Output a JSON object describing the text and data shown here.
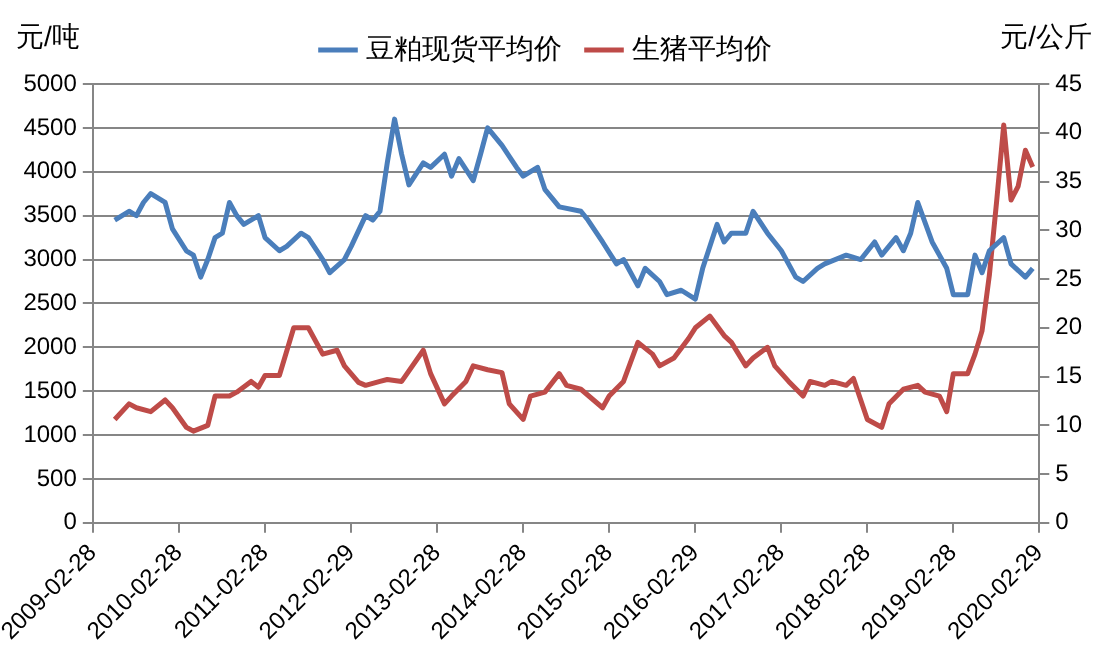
{
  "chart_data": {
    "type": "line",
    "ylabel": "元/吨",
    "y2label": "元/公斤",
    "xlim": [
      "2009-02-28",
      "2020-02-29"
    ],
    "xticks": [
      "2009-02-28",
      "2010-02-28",
      "2011-02-28",
      "2012-02-29",
      "2013-02-28",
      "2014-02-28",
      "2015-02-28",
      "2016-02-29",
      "2017-02-28",
      "2018-02-28",
      "2019-02-28",
      "2020-02-29"
    ],
    "ylim": [
      0,
      5000
    ],
    "yticks": [
      0,
      500,
      1000,
      1500,
      2000,
      2500,
      3000,
      3500,
      4000,
      4500,
      5000
    ],
    "y2lim": [
      0,
      45
    ],
    "y2ticks": [
      0,
      5,
      10,
      15,
      20,
      25,
      30,
      35,
      40,
      45
    ],
    "grid": "y",
    "legend": "top",
    "marker": "none",
    "line_style": "solid",
    "series": [
      {
        "name": "豆粕现货平均价",
        "color": "#4a7ebb",
        "x": [
          "2009-06",
          "2009-08",
          "2009-09",
          "2009-10",
          "2009-11",
          "2010-01",
          "2010-02",
          "2010-04",
          "2010-05",
          "2010-06",
          "2010-07",
          "2010-08",
          "2010-09",
          "2010-10",
          "2010-11",
          "2010-12",
          "2011-02",
          "2011-03",
          "2011-05",
          "2011-06",
          "2011-08",
          "2011-09",
          "2011-11",
          "2011-12",
          "2012-02",
          "2012-03",
          "2012-05",
          "2012-06",
          "2012-07",
          "2012-08",
          "2012-09",
          "2012-10",
          "2012-11",
          "2013-01",
          "2013-02",
          "2013-04",
          "2013-05",
          "2013-06",
          "2013-08",
          "2013-09",
          "2013-10",
          "2013-12",
          "2014-02",
          "2014-03",
          "2014-05",
          "2014-06",
          "2014-08",
          "2014-11",
          "2014-12",
          "2015-02",
          "2015-04",
          "2015-05",
          "2015-07",
          "2015-08",
          "2015-10",
          "2015-11",
          "2016-01",
          "2016-03",
          "2016-04",
          "2016-06",
          "2016-07",
          "2016-08",
          "2016-10",
          "2016-11",
          "2017-01",
          "2017-03",
          "2017-05",
          "2017-06",
          "2017-08",
          "2017-09",
          "2017-12",
          "2018-02",
          "2018-04",
          "2018-05",
          "2018-07",
          "2018-08",
          "2018-09",
          "2018-10",
          "2018-12",
          "2019-02",
          "2019-03",
          "2019-05",
          "2019-06",
          "2019-07",
          "2019-08",
          "2019-10",
          "2019-11",
          "2020-01",
          "2020-02"
        ],
        "values": [
          3450,
          3550,
          3500,
          3650,
          3750,
          3650,
          3350,
          3100,
          3050,
          2800,
          3000,
          3250,
          3300,
          3650,
          3500,
          3400,
          3500,
          3250,
          3100,
          3150,
          3300,
          3250,
          3000,
          2850,
          3000,
          3150,
          3500,
          3450,
          3550,
          4100,
          4600,
          4200,
          3850,
          4100,
          4050,
          4200,
          3950,
          4150,
          3900,
          4200,
          4500,
          4300,
          4050,
          3950,
          4050,
          3800,
          3600,
          3550,
          3450,
          3200,
          2950,
          3000,
          2700,
          2900,
          2750,
          2600,
          2650,
          2550,
          2900,
          3400,
          3200,
          3300,
          3300,
          3550,
          3300,
          3100,
          2800,
          2750,
          2900,
          2950,
          3050,
          3000,
          3200,
          3050,
          3250,
          3100,
          3300,
          3650,
          3200,
          2900,
          2600,
          2600,
          3050,
          2850,
          3100,
          3250,
          2950,
          2800,
          2900
        ]
      },
      {
        "name": "生猪平均价",
        "color": "#be4b48",
        "axis": "y2",
        "x": [
          "2009-06",
          "2009-08",
          "2009-09",
          "2009-11",
          "2010-01",
          "2010-02",
          "2010-04",
          "2010-05",
          "2010-07",
          "2010-08",
          "2010-10",
          "2010-11",
          "2011-01",
          "2011-02",
          "2011-03",
          "2011-05",
          "2011-07",
          "2011-09",
          "2011-11",
          "2012-01",
          "2012-02",
          "2012-04",
          "2012-05",
          "2012-07",
          "2012-08",
          "2012-10",
          "2013-01",
          "2013-02",
          "2013-04",
          "2013-05",
          "2013-07",
          "2013-08",
          "2013-10",
          "2013-12",
          "2014-01",
          "2014-03",
          "2014-04",
          "2014-06",
          "2014-08",
          "2014-09",
          "2014-11",
          "2015-02",
          "2015-03",
          "2015-05",
          "2015-07",
          "2015-09",
          "2015-10",
          "2015-12",
          "2016-02",
          "2016-03",
          "2016-05",
          "2016-07",
          "2016-08",
          "2016-10",
          "2016-11",
          "2017-01",
          "2017-02",
          "2017-04",
          "2017-06",
          "2017-07",
          "2017-09",
          "2017-10",
          "2017-12",
          "2018-01",
          "2018-03",
          "2018-05",
          "2018-06",
          "2018-08",
          "2018-10",
          "2018-11",
          "2019-01",
          "2019-02",
          "2019-03",
          "2019-05",
          "2019-06",
          "2019-07",
          "2019-08",
          "2019-09",
          "2019-10",
          "2019-11",
          "2019-12",
          "2020-01",
          "2020-02"
        ],
        "values": [
          10.6,
          12.2,
          11.8,
          11.4,
          12.6,
          11.8,
          9.8,
          9.4,
          10,
          13,
          13,
          13.4,
          14.5,
          13.9,
          15.1,
          15.1,
          20,
          20,
          17.3,
          17.7,
          16.1,
          14.4,
          14.1,
          14.5,
          14.7,
          14.5,
          17.7,
          15.3,
          12.2,
          13,
          14.5,
          16.1,
          15.7,
          15.4,
          12.2,
          10.6,
          13,
          13.4,
          15.3,
          14.1,
          13.7,
          11.8,
          13,
          14.5,
          18.5,
          17.3,
          16.1,
          16.9,
          18.9,
          20,
          21.2,
          19.2,
          18.5,
          16.1,
          16.9,
          18,
          16.1,
          14.5,
          13,
          14.5,
          14.1,
          14.5,
          14.1,
          14.8,
          10.6,
          9.8,
          12.2,
          13.7,
          14.1,
          13.4,
          13,
          11.4,
          15.3,
          15.3,
          17.3,
          19.7,
          25.4,
          33,
          40.8,
          33.1,
          34.5,
          38.2,
          36.5
        ]
      }
    ]
  }
}
